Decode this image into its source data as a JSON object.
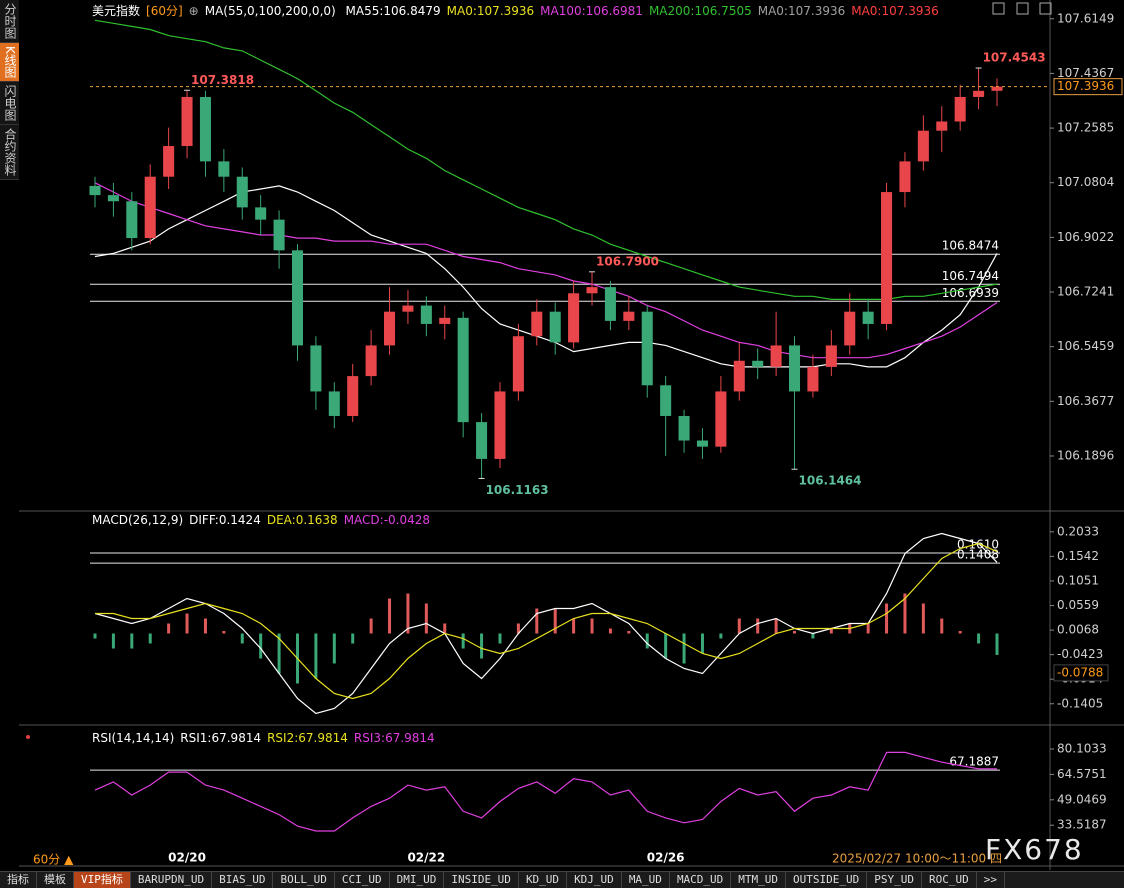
{
  "sidebar": [
    "分时图",
    "K线图",
    "闪电图",
    "合约资料"
  ],
  "header": {
    "symbol": "美元指数",
    "period": "[60分]",
    "indicator": "MA(55,0,100,200,0,0)"
  },
  "chart_data": [
    {
      "type": "candlestick",
      "categories": [
        null,
        null,
        null,
        null,
        null,
        "02/20",
        null,
        null,
        null,
        null,
        null,
        null,
        null,
        null,
        null,
        null,
        null,
        null,
        "02/22",
        null,
        null,
        null,
        null,
        null,
        null,
        null,
        null,
        null,
        null,
        null,
        null,
        "02/26",
        null,
        null,
        null,
        null,
        null,
        null,
        null,
        null,
        null,
        null,
        null,
        null,
        null,
        null,
        null,
        null,
        null,
        null
      ],
      "open": [
        107.07,
        107.04,
        107.02,
        106.9,
        107.1,
        107.2,
        107.36,
        107.15,
        107.1,
        107.0,
        106.96,
        106.86,
        106.55,
        106.4,
        106.32,
        106.45,
        106.55,
        106.66,
        106.68,
        106.62,
        106.64,
        106.3,
        106.18,
        106.4,
        106.58,
        106.66,
        106.56,
        106.72,
        106.74,
        106.63,
        106.66,
        106.42,
        106.32,
        106.24,
        106.22,
        106.4,
        106.5,
        106.48,
        106.55,
        106.4,
        106.48,
        106.55,
        106.66,
        106.62,
        107.05,
        107.15,
        107.25,
        107.28,
        107.36,
        107.38
      ],
      "high": [
        107.1,
        107.08,
        107.05,
        107.14,
        107.26,
        107.3818,
        107.38,
        107.19,
        107.13,
        107.04,
        106.99,
        106.88,
        106.58,
        106.43,
        106.49,
        106.6,
        106.74,
        106.73,
        106.71,
        106.68,
        106.66,
        106.33,
        106.43,
        106.62,
        106.7,
        106.69,
        106.76,
        106.79,
        106.76,
        106.71,
        106.68,
        106.45,
        106.34,
        106.28,
        106.45,
        106.56,
        106.54,
        106.66,
        106.58,
        106.52,
        106.6,
        106.72,
        106.7,
        107.08,
        107.18,
        107.3,
        107.33,
        107.4,
        107.4543,
        107.42
      ],
      "low": [
        107.0,
        106.97,
        106.86,
        106.88,
        107.06,
        107.16,
        107.1,
        107.05,
        106.96,
        106.91,
        106.8,
        106.5,
        106.34,
        106.28,
        106.3,
        106.42,
        106.52,
        106.62,
        106.58,
        106.57,
        106.25,
        106.1163,
        106.15,
        106.37,
        106.55,
        106.52,
        106.54,
        106.68,
        106.6,
        106.6,
        106.38,
        106.19,
        106.2,
        106.18,
        106.2,
        106.37,
        106.44,
        106.45,
        106.1464,
        106.38,
        106.45,
        106.52,
        106.57,
        106.6,
        107.0,
        107.12,
        107.18,
        107.25,
        107.32,
        107.33
      ],
      "close": [
        107.04,
        107.02,
        106.9,
        107.1,
        107.2,
        107.36,
        107.15,
        107.1,
        107.0,
        106.96,
        106.86,
        106.55,
        106.4,
        106.32,
        106.45,
        106.55,
        106.66,
        106.68,
        106.62,
        106.64,
        106.3,
        106.18,
        106.4,
        106.58,
        106.66,
        106.56,
        106.72,
        106.74,
        106.63,
        106.66,
        106.42,
        106.32,
        106.24,
        106.22,
        106.4,
        106.5,
        106.48,
        106.55,
        106.4,
        106.48,
        106.55,
        106.66,
        106.62,
        107.05,
        107.15,
        107.25,
        107.28,
        107.36,
        107.38,
        107.3936
      ],
      "up_color": "#e8464a",
      "down_color": "#3aa877",
      "series": [
        {
          "name": "MA55:106.8479",
          "color": "#ffffff",
          "values": [
            106.84,
            106.85,
            106.87,
            106.89,
            106.93,
            106.96,
            106.99,
            107.02,
            107.05,
            107.06,
            107.07,
            107.05,
            107.02,
            106.99,
            106.95,
            106.91,
            106.89,
            106.87,
            106.85,
            106.8,
            106.74,
            106.67,
            106.62,
            106.6,
            106.58,
            106.56,
            106.53,
            106.54,
            106.55,
            106.56,
            106.56,
            106.55,
            106.53,
            106.51,
            106.49,
            106.48,
            106.48,
            106.48,
            106.48,
            106.48,
            106.49,
            106.49,
            106.48,
            106.48,
            106.51,
            106.56,
            106.6,
            106.65,
            106.74,
            106.85
          ]
        },
        {
          "name": "MA100:106.6981",
          "color": "#e040e0",
          "values": [
            107.08,
            107.05,
            107.02,
            107.0,
            106.98,
            106.96,
            106.94,
            106.93,
            106.92,
            106.91,
            106.91,
            106.9,
            106.9,
            106.89,
            106.89,
            106.89,
            106.88,
            106.88,
            106.88,
            106.86,
            106.84,
            106.83,
            106.82,
            106.8,
            106.79,
            106.78,
            106.76,
            106.75,
            106.73,
            106.71,
            106.68,
            106.66,
            106.63,
            106.6,
            106.58,
            106.56,
            106.55,
            106.53,
            106.52,
            106.51,
            106.51,
            106.51,
            106.51,
            106.52,
            106.54,
            106.56,
            106.58,
            106.61,
            106.65,
            106.69
          ]
        },
        {
          "name": "MA200:106.7505",
          "color": "#30c030",
          "values": [
            107.61,
            107.6,
            107.59,
            107.58,
            107.56,
            107.55,
            107.54,
            107.52,
            107.51,
            107.48,
            107.45,
            107.42,
            107.38,
            107.34,
            107.31,
            107.27,
            107.23,
            107.19,
            107.16,
            107.12,
            107.09,
            107.06,
            107.03,
            107.0,
            106.98,
            106.96,
            106.93,
            106.91,
            106.88,
            106.86,
            106.84,
            106.82,
            106.8,
            106.78,
            106.76,
            106.74,
            106.73,
            106.72,
            106.71,
            106.71,
            106.7,
            106.7,
            106.7,
            106.7,
            106.71,
            106.71,
            106.72,
            106.73,
            106.74,
            106.75
          ]
        }
      ],
      "legend_extra": [
        {
          "name": "MA0:107.3936",
          "color": "#e8e020"
        },
        {
          "name": "MA0:107.3936",
          "color": "#a0a0a0"
        },
        {
          "name": "MA0:107.3936",
          "color": "#ff4040"
        }
      ],
      "annotations": [
        107.3818,
        106.1163,
        {
          "value": 106.79,
          "label": "106.7900"
        },
        106.1464,
        107.4543
      ],
      "levels": [
        106.8474,
        106.7494,
        106.6939
      ],
      "last": 107.3936,
      "ylim": [
        106.02,
        107.65
      ],
      "yticks": [
        107.6149,
        107.4367,
        107.2585,
        107.0804,
        106.9022,
        106.7241,
        106.5459,
        106.3677,
        106.1896
      ]
    },
    {
      "type": "macd",
      "title": "MACD(26,12,9)",
      "series": [
        {
          "name": "DIFF:0.1424",
          "color": "#ffffff",
          "values": [
            0.04,
            0.03,
            0.02,
            0.03,
            0.05,
            0.07,
            0.06,
            0.04,
            0.01,
            -0.03,
            -0.08,
            -0.13,
            -0.16,
            -0.15,
            -0.12,
            -0.07,
            -0.02,
            0.01,
            0.02,
            0.0,
            -0.06,
            -0.09,
            -0.05,
            0.0,
            0.04,
            0.05,
            0.05,
            0.06,
            0.04,
            0.02,
            -0.02,
            -0.05,
            -0.07,
            -0.08,
            -0.04,
            0.0,
            0.02,
            0.03,
            0.01,
            0.0,
            0.01,
            0.02,
            0.02,
            0.08,
            0.16,
            0.19,
            0.2,
            0.19,
            0.18,
            0.1424
          ]
        },
        {
          "name": "DEA:0.1638",
          "color": "#e8e020",
          "values": [
            0.04,
            0.04,
            0.03,
            0.03,
            0.04,
            0.05,
            0.06,
            0.05,
            0.04,
            0.02,
            -0.01,
            -0.05,
            -0.09,
            -0.12,
            -0.13,
            -0.12,
            -0.09,
            -0.05,
            -0.02,
            0.0,
            -0.01,
            -0.03,
            -0.04,
            -0.03,
            -0.01,
            0.01,
            0.03,
            0.04,
            0.04,
            0.03,
            0.02,
            0.0,
            -0.02,
            -0.04,
            -0.05,
            -0.04,
            -0.02,
            0.0,
            0.01,
            0.01,
            0.01,
            0.01,
            0.02,
            0.04,
            0.07,
            0.11,
            0.15,
            0.17,
            0.18,
            0.1638
          ]
        }
      ],
      "histogram": {
        "name": "MACD:-0.0428",
        "color": "#e040e0",
        "up_color": "#e05a5a",
        "down_color": "#3aa877",
        "values": [
          -0.01,
          -0.03,
          -0.03,
          -0.02,
          0.02,
          0.04,
          0.03,
          0.005,
          -0.02,
          -0.05,
          -0.08,
          -0.1,
          -0.09,
          -0.06,
          -0.02,
          0.03,
          0.07,
          0.08,
          0.06,
          0.02,
          -0.03,
          -0.05,
          -0.02,
          0.02,
          0.05,
          0.05,
          0.03,
          0.03,
          0.01,
          0.005,
          -0.03,
          -0.05,
          -0.06,
          -0.04,
          -0.01,
          0.03,
          0.03,
          0.03,
          0.005,
          -0.01,
          0.01,
          0.02,
          0.02,
          0.06,
          0.08,
          0.06,
          0.03,
          0.005,
          -0.02,
          -0.0428
        ]
      },
      "levels": [
        {
          "value": 0.161,
          "label": "0.1610"
        },
        0.1408
      ],
      "marker": -0.0788,
      "ylim": [
        -0.163,
        0.237
      ],
      "yticks": [
        0.2033,
        0.1542,
        0.1051,
        0.0559,
        0.0068,
        -0.0423,
        -0.0914,
        -0.1405
      ]
    },
    {
      "type": "line",
      "title": "RSI(14,14,14)",
      "legend_extra": [
        {
          "name": "RSI1:67.9814",
          "color": "#ffffff"
        },
        {
          "name": "RSI2:67.9814",
          "color": "#e8e020"
        }
      ],
      "series": [
        {
          "name": "RSI3:67.9814",
          "color": "#e040e0",
          "values": [
            55,
            60,
            52,
            58,
            66,
            66,
            58,
            55,
            50,
            45,
            40,
            33,
            30,
            30,
            38,
            45,
            50,
            58,
            55,
            57,
            42,
            38,
            48,
            56,
            60,
            53,
            62,
            60,
            52,
            55,
            42,
            38,
            35,
            37,
            48,
            56,
            52,
            54,
            42,
            50,
            52,
            57,
            55,
            78,
            78,
            75,
            72,
            70,
            68,
            67.9814
          ]
        }
      ],
      "levels": [
        67.1887
      ],
      "ylim": [
        9.2,
        91.7
      ],
      "yticks": [
        80.1033,
        64.5751,
        49.0469,
        33.5187
      ]
    }
  ],
  "status": {
    "period": "60分 ▲",
    "datetime": "2025/02/27 10:00～11:00 四",
    "watermark": "FX678"
  },
  "toolbar": [
    "指标",
    "模板",
    "VIP指标",
    "BARUPDN_UD",
    "BIAS_UD",
    "BOLL_UD",
    "CCI_UD",
    "DMI_UD",
    "INSIDE_UD",
    "KD_UD",
    "KDJ_UD",
    "MA_UD",
    "MACD_UD",
    "MTM_UD",
    "OUTSIDE_UD",
    "PSY_UD",
    "ROC_UD",
    ">>"
  ]
}
